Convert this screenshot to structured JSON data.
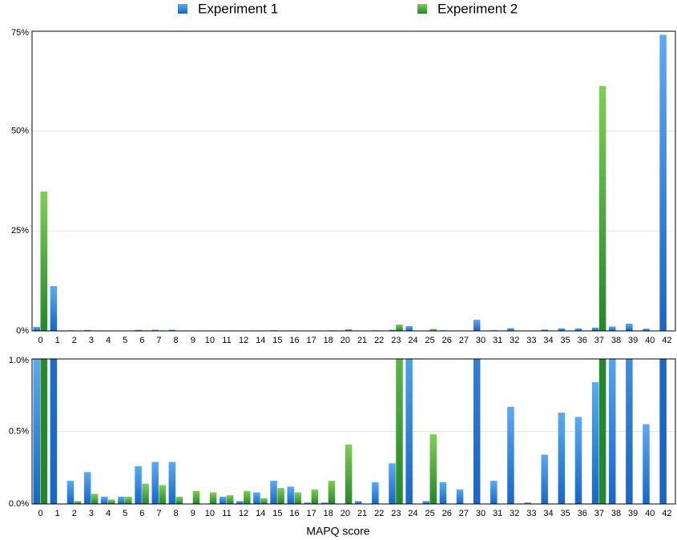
{
  "chart_data": {
    "type": "bar",
    "x_label": "MAPQ score",
    "categories": [
      "0",
      "1",
      "2",
      "3",
      "4",
      "5",
      "6",
      "7",
      "8",
      "9",
      "10",
      "11",
      "12",
      "14",
      "15",
      "16",
      "17",
      "18",
      "20",
      "21",
      "22",
      "23",
      "24",
      "25",
      "26",
      "27",
      "30",
      "31",
      "32",
      "33",
      "34",
      "35",
      "36",
      "37",
      "38",
      "39",
      "40",
      "42"
    ],
    "series": [
      {
        "name": "Experiment 1",
        "color": "#2f7fdc",
        "values": [
          1.0,
          11.2,
          0.16,
          0.22,
          0.05,
          0.05,
          0.26,
          0.29,
          0.29,
          0,
          0,
          0.05,
          0.02,
          0.08,
          0.16,
          0.12,
          0.01,
          0.01,
          0,
          0.02,
          0.15,
          0.28,
          1.2,
          0.02,
          0.15,
          0.1,
          2.8,
          0.16,
          0.67,
          0.01,
          0.34,
          0.63,
          0.6,
          0.84,
          1.1,
          1.8,
          0.55,
          74.1
        ]
      },
      {
        "name": "Experiment 2",
        "color": "#3fa22f",
        "values": [
          34.9,
          0,
          0.02,
          0.07,
          0.03,
          0.05,
          0.14,
          0.13,
          0.05,
          0.09,
          0.08,
          0.06,
          0.09,
          0.04,
          0.11,
          0.08,
          0.1,
          0.16,
          0.41,
          0,
          0,
          1.6,
          0,
          0.48,
          0,
          0,
          0,
          0,
          0,
          0,
          0,
          0,
          0,
          61.3,
          0,
          0,
          0,
          0
        ]
      }
    ],
    "panels": [
      {
        "ylim": [
          0,
          75
        ],
        "yticks": [
          {
            "value": 0,
            "label": "0%"
          },
          {
            "value": 25,
            "label": "25%"
          },
          {
            "value": 50,
            "label": "50%"
          },
          {
            "value": 75,
            "label": "75%"
          }
        ]
      },
      {
        "ylim": [
          0,
          1
        ],
        "yticks": [
          {
            "value": 0,
            "label": "0.0%"
          },
          {
            "value": 0.5,
            "label": "0.5%"
          },
          {
            "value": 1,
            "label": "1.0%"
          }
        ]
      }
    ]
  }
}
